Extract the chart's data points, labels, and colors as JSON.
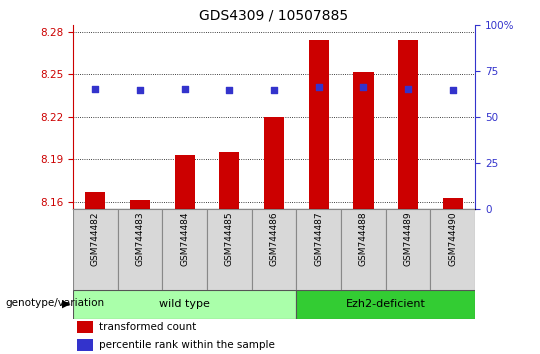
{
  "title": "GDS4309 / 10507885",
  "samples": [
    "GSM744482",
    "GSM744483",
    "GSM744484",
    "GSM744485",
    "GSM744486",
    "GSM744487",
    "GSM744488",
    "GSM744489",
    "GSM744490"
  ],
  "transformed_count": [
    8.167,
    8.161,
    8.193,
    8.195,
    8.22,
    8.274,
    8.252,
    8.274,
    8.163
  ],
  "percentile_rank_left": [
    8.24,
    8.239,
    8.24,
    8.239,
    8.239,
    8.241,
    8.241,
    8.24,
    8.239
  ],
  "ylim_left": [
    8.155,
    8.285
  ],
  "ylim_right": [
    0,
    100
  ],
  "yticks_left": [
    8.16,
    8.19,
    8.22,
    8.25,
    8.28
  ],
  "yticks_right": [
    0,
    25,
    50,
    75,
    100
  ],
  "ytick_labels_left": [
    "8.16",
    "8.19",
    "8.22",
    "8.25",
    "8.28"
  ],
  "ytick_labels_right": [
    "0",
    "25",
    "50",
    "75",
    "100%"
  ],
  "bar_color": "#cc0000",
  "dot_color": "#3333cc",
  "baseline": 8.155,
  "wt_color": "#aaffaa",
  "ezh_color": "#33cc33",
  "sample_box_color": "#d8d8d8",
  "group_label": "genotype/variation",
  "legend_items": [
    {
      "color": "#cc0000",
      "label": "transformed count"
    },
    {
      "color": "#3333cc",
      "label": "percentile rank within the sample"
    }
  ],
  "title_color": "black",
  "left_tick_color": "#cc0000",
  "right_tick_color": "#3333cc"
}
